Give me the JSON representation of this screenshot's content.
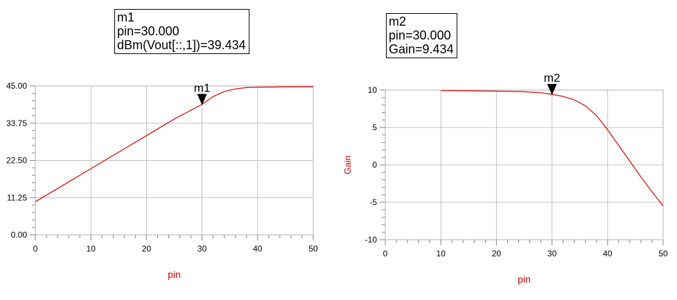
{
  "chart_data": [
    {
      "type": "line",
      "x": [
        0,
        5,
        10,
        15,
        20,
        25,
        30,
        32,
        34,
        36,
        38,
        40,
        45,
        50
      ],
      "series": [
        {
          "name": "",
          "color": "#e00000",
          "values": [
            10.0,
            15.0,
            20.0,
            25.0,
            30.0,
            35.0,
            39.434,
            41.8,
            43.3,
            44.1,
            44.5,
            44.6,
            44.7,
            44.7
          ]
        }
      ],
      "xlabel": "pin",
      "ylabel": "",
      "xlim": [
        0,
        50
      ],
      "ylim": [
        0,
        45
      ],
      "xticks": [
        "0",
        "10",
        "20",
        "30",
        "40",
        "50"
      ],
      "yticks": [
        "0.00",
        "11.25",
        "22.50",
        "33.75",
        "45.00"
      ],
      "grid": true,
      "marker": {
        "name": "m1",
        "x": 30,
        "y": 39.434,
        "lines": [
          "m1",
          "pin=30.000",
          "dBm(Vout[::,1])=39.434"
        ]
      }
    },
    {
      "type": "line",
      "x": [
        10,
        15,
        20,
        25,
        28,
        30,
        32,
        34,
        36,
        38,
        40,
        42,
        44,
        46,
        48,
        50
      ],
      "series": [
        {
          "name": "",
          "color": "#e00000",
          "values": [
            9.93,
            9.9,
            9.86,
            9.78,
            9.65,
            9.434,
            9.15,
            8.7,
            7.9,
            6.6,
            4.7,
            2.6,
            0.5,
            -1.6,
            -3.6,
            -5.5
          ]
        }
      ],
      "xlabel": "pin",
      "ylabel": "Gain",
      "xlim": [
        0,
        50
      ],
      "ylim": [
        -10,
        10
      ],
      "xticks": [
        "0",
        "10",
        "20",
        "30",
        "40",
        "50"
      ],
      "yticks": [
        "-10",
        "-5",
        "0",
        "5",
        "10"
      ],
      "grid": true,
      "marker": {
        "name": "m2",
        "x": 30,
        "y": 9.434,
        "lines": [
          "m2",
          "pin=30.000",
          "Gain=9.434"
        ]
      }
    }
  ]
}
